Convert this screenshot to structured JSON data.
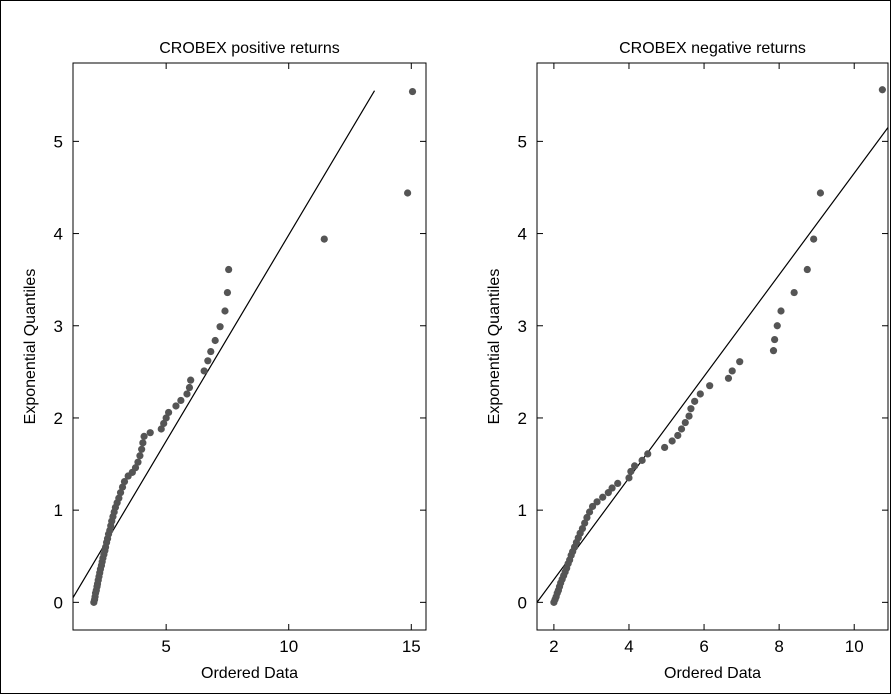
{
  "chart_data": [
    {
      "type": "scatter",
      "title": "CROBEX positive returns",
      "xlabel": "Ordered Data",
      "ylabel": "Exponential Quantiles",
      "xlim": [
        1.2,
        15.6
      ],
      "ylim": [
        -0.3,
        5.85
      ],
      "xticks": [
        5,
        10,
        15
      ],
      "yticks": [
        0,
        1,
        2,
        3,
        4,
        5
      ],
      "reference_line": [
        [
          1.2,
          0.05
        ],
        [
          13.5,
          5.55
        ]
      ],
      "points": [
        [
          2.05,
          0.0
        ],
        [
          2.08,
          0.03
        ],
        [
          2.1,
          0.06
        ],
        [
          2.12,
          0.1
        ],
        [
          2.15,
          0.13
        ],
        [
          2.18,
          0.17
        ],
        [
          2.2,
          0.2
        ],
        [
          2.23,
          0.24
        ],
        [
          2.26,
          0.28
        ],
        [
          2.29,
          0.32
        ],
        [
          2.32,
          0.36
        ],
        [
          2.36,
          0.4
        ],
        [
          2.39,
          0.44
        ],
        [
          2.42,
          0.48
        ],
        [
          2.46,
          0.52
        ],
        [
          2.5,
          0.56
        ],
        [
          2.53,
          0.6
        ],
        [
          2.57,
          0.65
        ],
        [
          2.61,
          0.69
        ],
        [
          2.65,
          0.74
        ],
        [
          2.7,
          0.78
        ],
        [
          2.74,
          0.83
        ],
        [
          2.78,
          0.88
        ],
        [
          2.83,
          0.93
        ],
        [
          2.88,
          0.98
        ],
        [
          2.93,
          1.03
        ],
        [
          3.0,
          1.08
        ],
        [
          3.07,
          1.13
        ],
        [
          3.14,
          1.19
        ],
        [
          3.22,
          1.25
        ],
        [
          3.3,
          1.31
        ],
        [
          3.45,
          1.37
        ],
        [
          3.62,
          1.41
        ],
        [
          3.75,
          1.46
        ],
        [
          3.85,
          1.52
        ],
        [
          3.93,
          1.59
        ],
        [
          4.0,
          1.66
        ],
        [
          4.05,
          1.73
        ],
        [
          4.1,
          1.8
        ],
        [
          4.35,
          1.84
        ],
        [
          4.8,
          1.88
        ],
        [
          4.9,
          1.94
        ],
        [
          5.0,
          2.0
        ],
        [
          5.1,
          2.06
        ],
        [
          5.4,
          2.13
        ],
        [
          5.6,
          2.19
        ],
        [
          5.85,
          2.26
        ],
        [
          5.95,
          2.33
        ],
        [
          6.0,
          2.41
        ],
        [
          6.55,
          2.51
        ],
        [
          6.7,
          2.62
        ],
        [
          6.82,
          2.72
        ],
        [
          7.0,
          2.84
        ],
        [
          7.2,
          2.99
        ],
        [
          7.4,
          3.16
        ],
        [
          7.5,
          3.36
        ],
        [
          7.55,
          3.61
        ],
        [
          11.45,
          3.94
        ],
        [
          14.85,
          4.44
        ],
        [
          15.05,
          5.54
        ]
      ]
    },
    {
      "type": "scatter",
      "title": "CROBEX negative returns",
      "xlabel": "Ordered Data",
      "ylabel": "Exponential Quantiles",
      "xlim": [
        1.55,
        10.9
      ],
      "ylim": [
        -0.3,
        5.85
      ],
      "xticks": [
        2,
        4,
        6,
        8,
        10
      ],
      "yticks": [
        0,
        1,
        2,
        3,
        4,
        5
      ],
      "reference_line": [
        [
          1.55,
          0.0
        ],
        [
          10.9,
          5.15
        ]
      ],
      "points": [
        [
          2.0,
          0.0
        ],
        [
          2.03,
          0.03
        ],
        [
          2.06,
          0.06
        ],
        [
          2.09,
          0.1
        ],
        [
          2.12,
          0.13
        ],
        [
          2.15,
          0.17
        ],
        [
          2.18,
          0.21
        ],
        [
          2.22,
          0.25
        ],
        [
          2.26,
          0.29
        ],
        [
          2.3,
          0.33
        ],
        [
          2.34,
          0.37
        ],
        [
          2.38,
          0.42
        ],
        [
          2.42,
          0.46
        ],
        [
          2.46,
          0.51
        ],
        [
          2.5,
          0.55
        ],
        [
          2.55,
          0.6
        ],
        [
          2.6,
          0.65
        ],
        [
          2.65,
          0.7
        ],
        [
          2.7,
          0.75
        ],
        [
          2.76,
          0.8
        ],
        [
          2.82,
          0.86
        ],
        [
          2.88,
          0.92
        ],
        [
          2.95,
          0.98
        ],
        [
          3.03,
          1.04
        ],
        [
          3.15,
          1.09
        ],
        [
          3.3,
          1.14
        ],
        [
          3.45,
          1.19
        ],
        [
          3.55,
          1.24
        ],
        [
          3.7,
          1.29
        ],
        [
          4.0,
          1.35
        ],
        [
          4.05,
          1.42
        ],
        [
          4.15,
          1.48
        ],
        [
          4.35,
          1.54
        ],
        [
          4.5,
          1.61
        ],
        [
          4.95,
          1.68
        ],
        [
          5.15,
          1.75
        ],
        [
          5.3,
          1.81
        ],
        [
          5.4,
          1.88
        ],
        [
          5.5,
          1.95
        ],
        [
          5.6,
          2.02
        ],
        [
          5.65,
          2.1
        ],
        [
          5.75,
          2.18
        ],
        [
          5.9,
          2.26
        ],
        [
          6.15,
          2.35
        ],
        [
          6.65,
          2.43
        ],
        [
          6.75,
          2.51
        ],
        [
          6.95,
          2.61
        ],
        [
          7.85,
          2.73
        ],
        [
          7.88,
          2.85
        ],
        [
          7.95,
          3.0
        ],
        [
          8.05,
          3.16
        ],
        [
          8.4,
          3.36
        ],
        [
          8.75,
          3.61
        ],
        [
          8.92,
          3.94
        ],
        [
          9.1,
          4.44
        ],
        [
          10.75,
          5.56
        ]
      ]
    }
  ]
}
